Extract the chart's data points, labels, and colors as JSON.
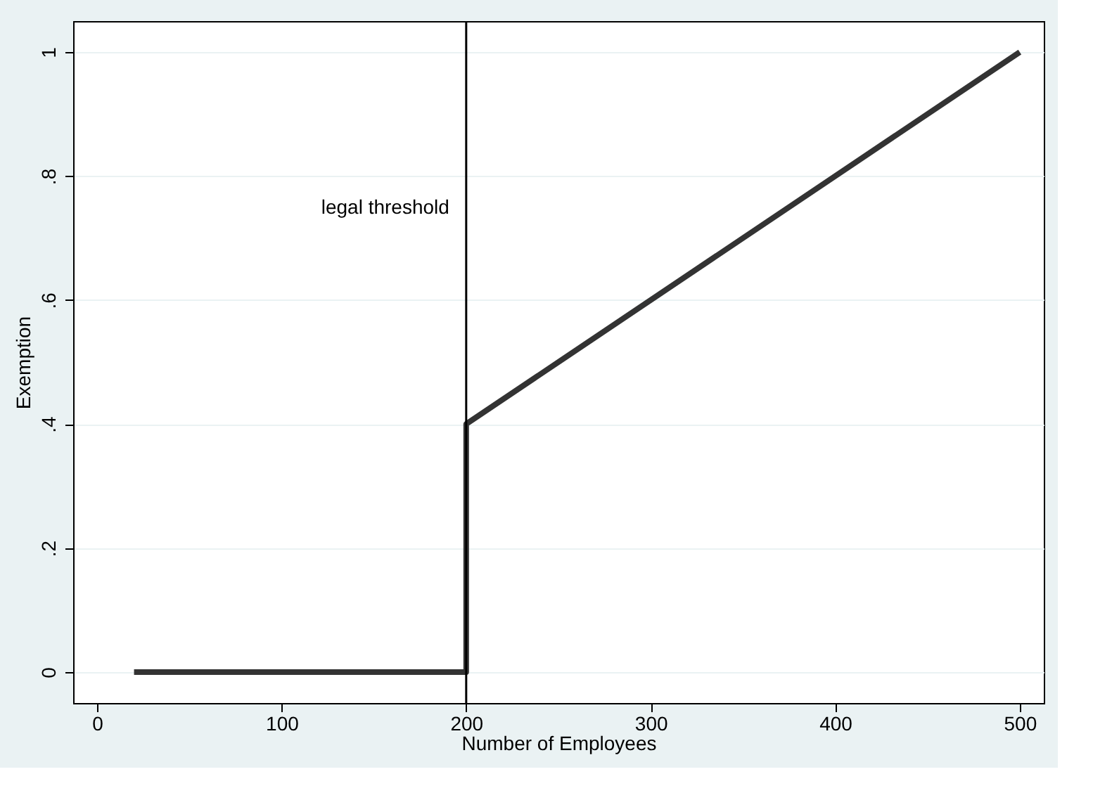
{
  "chart_data": {
    "type": "line",
    "xlabel": "Number of Employees",
    "ylabel": "Exemption",
    "x": [
      20,
      200,
      200,
      500
    ],
    "series": [
      {
        "color": "#333333",
        "values": [
          0,
          0,
          0.4,
          1
        ]
      }
    ],
    "xlim": [
      -13,
      513
    ],
    "xticks": [
      0,
      100,
      200,
      300,
      400,
      500
    ],
    "ylim": [
      -0.05,
      1.05
    ],
    "yticks": [
      {
        "value": 0,
        "label": "0"
      },
      {
        "value": 0.2,
        "label": ".2"
      },
      {
        "value": 0.4,
        "label": ".4"
      },
      {
        "value": 0.6,
        "label": ".6"
      },
      {
        "value": 0.8,
        "label": ".8"
      },
      {
        "value": 1,
        "label": "1"
      }
    ],
    "grid": "y",
    "marker": "none",
    "line_style": "solid",
    "ref_lines": [
      {
        "axis": "x",
        "value": 200,
        "color": "#000000",
        "label": "legal threshold"
      }
    ]
  }
}
